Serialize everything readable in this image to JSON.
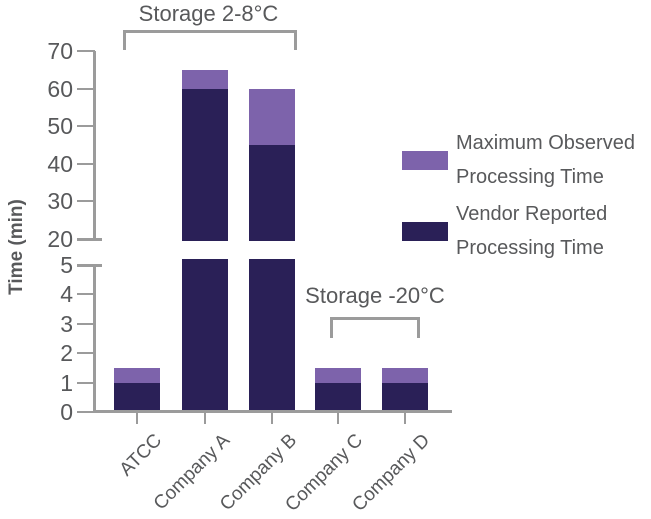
{
  "chart_data": {
    "type": "bar",
    "subtype": "stacked-with-broken-y-axis",
    "categories": [
      "ATCC",
      "Company A",
      "Company B",
      "Company C",
      "Company D"
    ],
    "series": [
      {
        "name": "Vendor Reported Processing Time",
        "color": "#2a2057",
        "values": [
          1,
          60,
          45,
          1,
          1
        ]
      },
      {
        "name": "Maximum Observed Processing Time",
        "color": "#7d63ab",
        "values": [
          1.5,
          65,
          60,
          1.5,
          1.5
        ]
      }
    ],
    "series_note": "Maximum Observed values are stacked-bar totals (top of light segment)",
    "ylabel": "Time (min)",
    "axis_break": {
      "lower_range": [
        0,
        5
      ],
      "upper_range": [
        20,
        70
      ]
    },
    "lower_ticks": [
      5,
      4,
      3,
      2,
      1,
      0
    ],
    "upper_ticks": [
      70,
      60,
      50,
      40,
      30,
      20
    ],
    "grid": false,
    "legend_position": "right"
  },
  "annotations": [
    {
      "label": "Storage 2-8°C",
      "categories": [
        "ATCC",
        "Company A",
        "Company B"
      ]
    },
    {
      "label": "Storage -20°C",
      "categories": [
        "Company C",
        "Company D"
      ]
    }
  ],
  "legend": {
    "items": [
      {
        "line1": "Maximum Observed",
        "line2": "Processing Time"
      },
      {
        "line1": "Vendor Reported",
        "line2": "Processing Time"
      }
    ]
  },
  "colors": {
    "vendor_dark": "#2a2057",
    "max_light": "#7d63ab",
    "axis_gray": "#9b9b9b",
    "text_gray": "#58595b"
  }
}
